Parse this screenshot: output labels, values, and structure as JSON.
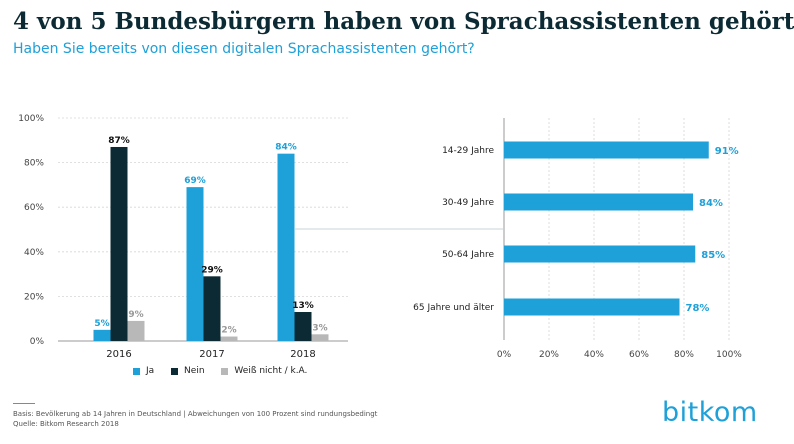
{
  "title": "4 von 5 Bundesbürgern haben von Sprachassistenten gehört",
  "subtitle": "Haben Sie bereits von diesen digitalen Sprachassistenten gehört?",
  "footer": {
    "line1": "Basis: Bevölkerung ab 14 Jahren in Deutschland | Abweichungen von 100 Prozent sind rundungsbedingt",
    "line2": "Quelle: Bitkom Research 2018"
  },
  "logo": "bitkom",
  "colors": {
    "ja": "#1ea0d8",
    "nein": "#0b2a33",
    "weiss": "#b8b8b8",
    "grid": "#d6d6d6"
  },
  "chart_data": [
    {
      "type": "bar",
      "title": "",
      "categories": [
        "2016",
        "2017",
        "2018"
      ],
      "series": [
        {
          "name": "Ja",
          "values": [
            5,
            69,
            84
          ],
          "labels": [
            "5%",
            "69%",
            "84%"
          ]
        },
        {
          "name": "Nein",
          "values": [
            87,
            29,
            13
          ],
          "labels": [
            "87%",
            "29%",
            "13%"
          ]
        },
        {
          "name": "Weiß nicht / k.A.",
          "values": [
            9,
            2,
            3
          ],
          "labels": [
            "9%",
            "2%",
            "3%"
          ]
        }
      ],
      "ylim": [
        0,
        100
      ],
      "yticks": [
        "0%",
        "20%",
        "40%",
        "60%",
        "80%",
        "100%"
      ],
      "grid": true,
      "legend": "bottom"
    },
    {
      "type": "bar",
      "orientation": "horizontal",
      "categories": [
        "14-29 Jahre",
        "30-49 Jahre",
        "50-64 Jahre",
        "65 Jahre und älter"
      ],
      "values": [
        91,
        84,
        85,
        78
      ],
      "labels": [
        "91%",
        "84%",
        "85%",
        "78%"
      ],
      "xlim": [
        0,
        100
      ],
      "xticks": [
        "0%",
        "20%",
        "40%",
        "60%",
        "80%",
        "100%"
      ],
      "grid": true
    }
  ]
}
